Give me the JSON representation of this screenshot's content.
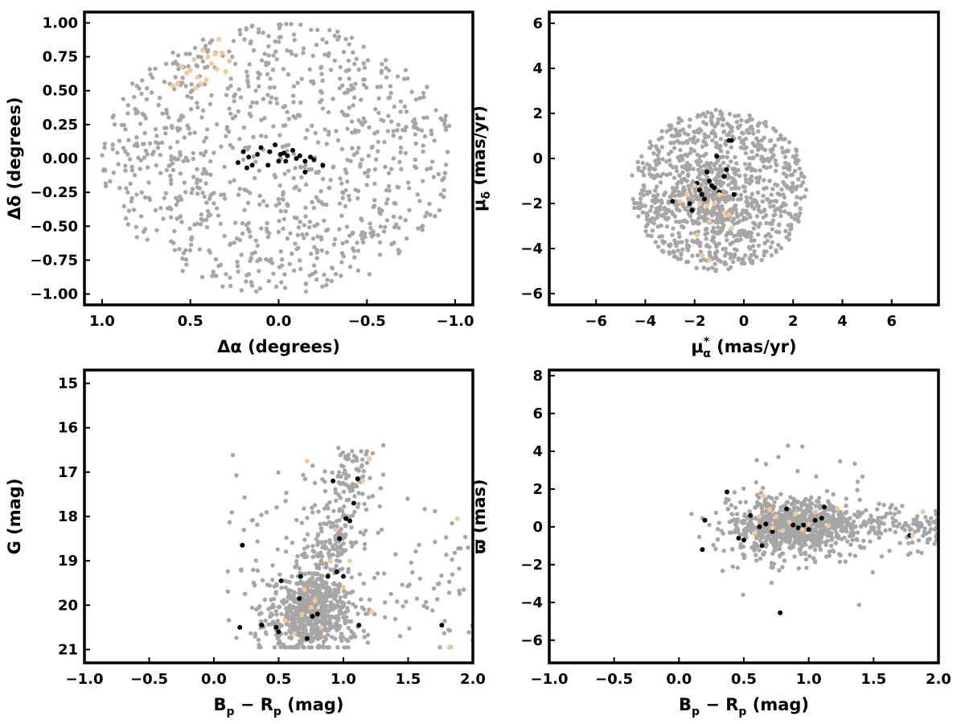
{
  "colors": {
    "field": "#a6a6a6",
    "members": "#000000",
    "candidates": "#fdc58a"
  },
  "chart_data": [
    {
      "type": "scatter",
      "id": "sky",
      "xlabel": "Δα (degrees)",
      "ylabel": "Δδ (degrees)",
      "xlim": [
        1.1,
        -1.1
      ],
      "ylim": [
        -1.08,
        1.08
      ],
      "xticks": [
        1.0,
        0.5,
        0.0,
        -0.5,
        -1.0
      ],
      "xtick_labels": [
        "1.0",
        "0.5",
        "0.0",
        "−0.5",
        "−1.0"
      ],
      "yticks": [
        -1.0,
        -0.75,
        -0.5,
        -0.25,
        0.0,
        0.25,
        0.5,
        0.75,
        1.0
      ],
      "ytick_labels": [
        "−1.00",
        "−0.75",
        "−0.50",
        "−0.25",
        "0.00",
        "0.25",
        "0.50",
        "0.75",
        "1.00"
      ],
      "field_distribution": {
        "kind": "disk",
        "center": [
          0,
          0
        ],
        "radius": 1.0,
        "count": 950
      },
      "series": [
        {
          "role": "members",
          "points": [
            [
              0.23,
              -0.03
            ],
            [
              0.2,
              0.05
            ],
            [
              0.17,
              0.01
            ],
            [
              0.15,
              -0.05
            ],
            [
              0.12,
              0.03
            ],
            [
              0.1,
              0.08
            ],
            [
              0.05,
              0.05
            ],
            [
              0.02,
              0.1
            ],
            [
              -0.01,
              0.03
            ],
            [
              -0.03,
              0.04
            ],
            [
              -0.05,
              0.02
            ],
            [
              -0.08,
              0.06
            ],
            [
              -0.1,
              0.0
            ],
            [
              -0.12,
              0.02
            ],
            [
              -0.15,
              -0.02
            ],
            [
              -0.18,
              0.01
            ],
            [
              -0.2,
              -0.01
            ],
            [
              -0.25,
              -0.05
            ],
            [
              0.0,
              -0.02
            ],
            [
              -0.15,
              -0.1
            ],
            [
              0.18,
              -0.07
            ],
            [
              0.06,
              -0.05
            ],
            [
              -0.04,
              -0.02
            ]
          ]
        },
        {
          "role": "candidates",
          "points": [
            [
              0.55,
              0.68
            ],
            [
              0.52,
              0.63
            ],
            [
              0.5,
              0.65
            ],
            [
              0.48,
              0.73
            ],
            [
              0.46,
              0.6
            ],
            [
              0.44,
              0.55
            ],
            [
              0.43,
              0.8
            ],
            [
              0.4,
              0.75
            ],
            [
              0.38,
              0.7
            ],
            [
              0.36,
              0.77
            ],
            [
              0.34,
              0.88
            ],
            [
              0.32,
              0.78
            ],
            [
              0.3,
              0.64
            ],
            [
              0.28,
              0.72
            ],
            [
              0.57,
              0.55
            ],
            [
              0.6,
              0.54
            ],
            [
              0.47,
              0.52
            ],
            [
              0.41,
              0.58
            ],
            [
              0.35,
              0.66
            ]
          ]
        }
      ]
    },
    {
      "type": "scatter",
      "id": "proper-motion",
      "xlabel": "μ",
      "xlabel_sub": "α",
      "xlabel_sup": "*",
      "xlabel_unit": "(mas/yr)",
      "ylabel": "μ",
      "ylabel_sub": "δ",
      "ylabel_unit": "(mas/yr)",
      "xlim": [
        -7.9,
        7.9
      ],
      "ylim": [
        -6.5,
        6.5
      ],
      "xticks": [
        -6,
        -4,
        -2,
        0,
        2,
        4,
        6
      ],
      "xtick_labels": [
        "−6",
        "−4",
        "−2",
        "0",
        "2",
        "4",
        "6"
      ],
      "yticks": [
        -6,
        -4,
        -2,
        0,
        2,
        4,
        6
      ],
      "ytick_labels": [
        "−6",
        "−4",
        "−2",
        "0",
        "2",
        "4",
        "6"
      ],
      "field_distribution": {
        "kind": "disk",
        "center": [
          -1.0,
          -1.4
        ],
        "radius": 3.6,
        "count": 900,
        "clip_y": [
          -5.0,
          4.5
        ]
      },
      "series": [
        {
          "role": "members",
          "points": [
            [
              -1.9,
              -1.1
            ],
            [
              -1.7,
              -1.6
            ],
            [
              -1.5,
              -0.6
            ],
            [
              -1.3,
              -1.2
            ],
            [
              -1.2,
              -1.3
            ],
            [
              -1.0,
              -1.5
            ],
            [
              -0.8,
              -0.8
            ],
            [
              -0.6,
              0.8
            ],
            [
              -0.5,
              0.8
            ],
            [
              -0.4,
              -1.6
            ],
            [
              -2.1,
              -2.3
            ],
            [
              -2.2,
              -2.0
            ],
            [
              -1.4,
              -1.0
            ],
            [
              -1.6,
              -1.8
            ],
            [
              -2.9,
              -1.9
            ],
            [
              -1.1,
              0.1
            ],
            [
              -1.8,
              -1.4
            ],
            [
              -0.7,
              -0.5
            ]
          ]
        },
        {
          "role": "candidates",
          "points": [
            [
              -2.3,
              -1.6
            ],
            [
              -2.0,
              -1.2
            ],
            [
              -1.8,
              -2.0
            ],
            [
              -1.5,
              -2.1
            ],
            [
              -1.4,
              -2.8
            ],
            [
              -1.2,
              -2.0
            ],
            [
              -1.0,
              -1.6
            ],
            [
              -0.8,
              -2.4
            ],
            [
              -0.6,
              -2.5
            ],
            [
              -0.5,
              -3.1
            ],
            [
              -1.7,
              -4.3
            ],
            [
              -1.4,
              -4.5
            ],
            [
              -2.6,
              -1.9
            ],
            [
              -1.9,
              -3.4
            ]
          ]
        }
      ]
    },
    {
      "type": "scatter",
      "id": "cmd",
      "xlabel": "B",
      "xlabel_sub": "p",
      "xlabel_mid": " − R",
      "xlabel_sub2": "p",
      "xlabel_unit": "(mag)",
      "ylabel": "G (mag)",
      "xlim": [
        -1.0,
        2.0
      ],
      "ylim": [
        21.3,
        14.7
      ],
      "xticks": [
        -1.0,
        -0.5,
        0.0,
        0.5,
        1.0,
        1.5,
        2.0
      ],
      "xtick_labels": [
        "−1.0",
        "−0.5",
        "0.0",
        "0.5",
        "1.0",
        "1.5",
        "2.0"
      ],
      "yticks": [
        15,
        16,
        17,
        18,
        19,
        20,
        21
      ],
      "ytick_labels": [
        "15",
        "16",
        "17",
        "18",
        "19",
        "20",
        "21"
      ],
      "field_distribution": {
        "kind": "cmd",
        "count": 1000
      },
      "series": [
        {
          "role": "members",
          "points": [
            [
              0.2,
              20.5
            ],
            [
              0.37,
              20.45
            ],
            [
              0.48,
              20.5
            ],
            [
              0.5,
              20.6
            ],
            [
              0.66,
              19.85
            ],
            [
              0.67,
              19.35
            ],
            [
              0.72,
              20.75
            ],
            [
              0.76,
              20.25
            ],
            [
              0.8,
              20.2
            ],
            [
              0.88,
              19.35
            ],
            [
              0.92,
              17.2
            ],
            [
              0.95,
              19.25
            ],
            [
              0.97,
              18.5
            ],
            [
              1.0,
              19.35
            ],
            [
              1.02,
              18.05
            ],
            [
              1.05,
              18.1
            ],
            [
              1.08,
              17.7
            ],
            [
              1.11,
              17.15
            ],
            [
              1.12,
              20.45
            ],
            [
              0.52,
              19.45
            ],
            [
              0.22,
              18.65
            ],
            [
              1.76,
              20.45
            ]
          ]
        },
        {
          "role": "candidates",
          "points": [
            [
              0.62,
              20.65
            ],
            [
              0.7,
              19.65
            ],
            [
              0.72,
              16.75
            ],
            [
              0.75,
              20.05
            ],
            [
              0.83,
              20.5
            ],
            [
              0.9,
              19.0
            ],
            [
              0.94,
              18.3
            ],
            [
              1.0,
              19.6
            ],
            [
              1.05,
              19.0
            ],
            [
              1.15,
              17.2
            ],
            [
              1.2,
              16.7
            ],
            [
              1.22,
              20.15
            ],
            [
              1.82,
              20.95
            ],
            [
              1.88,
              18.05
            ],
            [
              0.55,
              20.35
            ],
            [
              0.68,
              20.2
            ],
            [
              0.78,
              19.9
            ]
          ]
        }
      ]
    },
    {
      "type": "scatter",
      "id": "parallax",
      "xlabel": "B",
      "xlabel_sub": "p",
      "xlabel_mid": " − R",
      "xlabel_sub2": "p",
      "xlabel_unit": "(mag)",
      "ylabel": "ϖ (mas)",
      "xlim": [
        -1.0,
        2.0
      ],
      "ylim": [
        -7.2,
        8.3
      ],
      "xticks": [
        -1.0,
        -0.5,
        0.0,
        0.5,
        1.0,
        1.5,
        2.0
      ],
      "xtick_labels": [
        "−1.0",
        "−0.5",
        "0.0",
        "0.5",
        "1.0",
        "1.5",
        "2.0"
      ],
      "yticks": [
        -6,
        -4,
        -2,
        0,
        2,
        4,
        6,
        8
      ],
      "ytick_labels": [
        "−6",
        "−4",
        "−2",
        "0",
        "2",
        "4",
        "6",
        "8"
      ],
      "field_distribution": {
        "kind": "parallax",
        "count": 1000
      },
      "series": [
        {
          "role": "members",
          "points": [
            [
              0.18,
              -1.2
            ],
            [
              0.2,
              0.35
            ],
            [
              0.37,
              1.85
            ],
            [
              0.46,
              -0.6
            ],
            [
              0.5,
              -0.7
            ],
            [
              0.64,
              -1.0
            ],
            [
              0.67,
              0.15
            ],
            [
              0.72,
              -0.25
            ],
            [
              0.78,
              -4.55
            ],
            [
              0.83,
              0.95
            ],
            [
              0.88,
              0.1
            ],
            [
              0.92,
              -0.05
            ],
            [
              0.96,
              0.1
            ],
            [
              1.0,
              -0.15
            ],
            [
              1.05,
              0.35
            ],
            [
              1.1,
              0.45
            ],
            [
              1.12,
              1.05
            ],
            [
              1.78,
              -0.45
            ],
            [
              0.55,
              0.6
            ],
            [
              0.62,
              0.0
            ]
          ]
        },
        {
          "role": "candidates",
          "points": [
            [
              0.58,
              -0.35
            ],
            [
              0.62,
              0.55
            ],
            [
              0.65,
              1.65
            ],
            [
              0.7,
              0.9
            ],
            [
              0.75,
              0.55
            ],
            [
              0.8,
              -0.2
            ],
            [
              0.85,
              0.25
            ],
            [
              0.9,
              0.7
            ],
            [
              0.95,
              -0.15
            ],
            [
              1.0,
              0.15
            ],
            [
              1.05,
              0.8
            ],
            [
              1.15,
              0.05
            ],
            [
              1.22,
              0.95
            ],
            [
              1.8,
              -0.45
            ],
            [
              1.88,
              0.8
            ],
            [
              0.72,
              -0.05
            ]
          ]
        }
      ]
    }
  ]
}
